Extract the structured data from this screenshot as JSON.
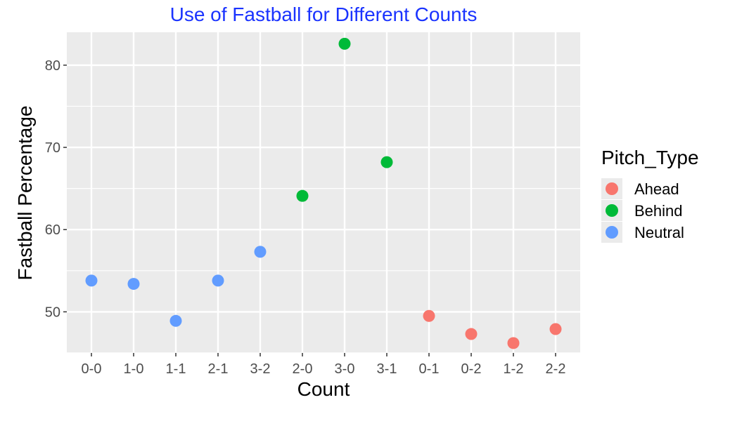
{
  "chart_data": {
    "type": "scatter",
    "title": "Use of Fastball for Different Counts",
    "title_color": "#1a33ff",
    "xlabel": "Count",
    "ylabel": "Fastball Percentage",
    "categories": [
      "0-0",
      "1-0",
      "1-1",
      "2-1",
      "3-2",
      "2-0",
      "3-0",
      "3-1",
      "0-1",
      "0-2",
      "1-2",
      "2-2"
    ],
    "ylim": [
      45,
      84
    ],
    "yticks": [
      50,
      60,
      70,
      80
    ],
    "grid": true,
    "legend": {
      "title": "Pitch_Type",
      "position": "right"
    },
    "series": [
      {
        "name": "Ahead",
        "color": "#f8766d",
        "points": [
          {
            "x": "0-1",
            "y": 49.5
          },
          {
            "x": "0-2",
            "y": 47.3
          },
          {
            "x": "1-2",
            "y": 46.2
          },
          {
            "x": "2-2",
            "y": 47.9
          }
        ]
      },
      {
        "name": "Behind",
        "color": "#00ba38",
        "points": [
          {
            "x": "2-0",
            "y": 64.1
          },
          {
            "x": "3-0",
            "y": 82.6
          },
          {
            "x": "3-1",
            "y": 68.2
          }
        ]
      },
      {
        "name": "Neutral",
        "color": "#619cff",
        "points": [
          {
            "x": "0-0",
            "y": 53.8
          },
          {
            "x": "1-0",
            "y": 53.4
          },
          {
            "x": "1-1",
            "y": 48.9
          },
          {
            "x": "2-1",
            "y": 53.8
          },
          {
            "x": "3-2",
            "y": 57.3
          }
        ]
      }
    ]
  }
}
